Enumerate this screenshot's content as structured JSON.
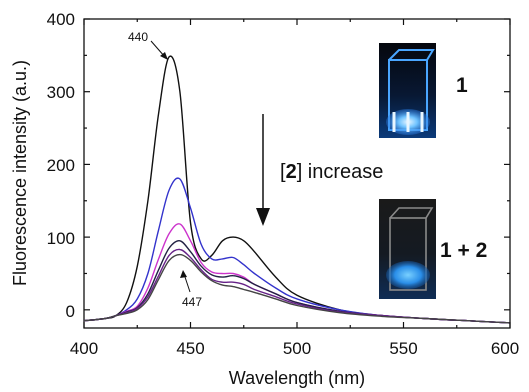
{
  "chart_data": {
    "type": "line",
    "xlabel": "Wavelength (nm)",
    "ylabel": "Fluorescence intensity (a.u.)",
    "xlim": [
      400,
      600
    ],
    "ylim": [
      -25,
      400
    ],
    "xticks": [
      "400",
      "450",
      "500",
      "550",
      "600"
    ],
    "yticks": [
      "0",
      "100",
      "200",
      "300",
      "400"
    ],
    "grid": false,
    "legend": "none",
    "series": [
      {
        "color": "#111111",
        "x": [
          400,
          410,
          415,
          420,
          425,
          430,
          435,
          440,
          445,
          450,
          455,
          460,
          465,
          470,
          475,
          480,
          490,
          500,
          520,
          540,
          560,
          580,
          600
        ],
        "y": [
          -15,
          -12,
          -8,
          10,
          60,
          150,
          270,
          348,
          300,
          120,
          70,
          75,
          95,
          100,
          95,
          80,
          45,
          20,
          0,
          -8,
          -12,
          -15,
          -18
        ]
      },
      {
        "color": "#3333cc",
        "x": [
          400,
          410,
          415,
          420,
          425,
          430,
          435,
          440,
          445,
          450,
          455,
          460,
          465,
          470,
          475,
          480,
          490,
          500,
          520,
          540,
          560,
          580,
          600
        ],
        "y": [
          -15,
          -12,
          -8,
          0,
          15,
          50,
          110,
          165,
          180,
          140,
          90,
          70,
          70,
          72,
          62,
          50,
          30,
          15,
          0,
          -8,
          -12,
          -15,
          -18
        ]
      },
      {
        "color": "#cc33cc",
        "x": [
          400,
          410,
          415,
          420,
          425,
          430,
          435,
          440,
          445,
          450,
          455,
          460,
          465,
          470,
          475,
          480,
          490,
          500,
          520,
          540,
          560,
          580,
          600
        ],
        "y": [
          -15,
          -12,
          -8,
          -2,
          5,
          30,
          70,
          105,
          118,
          95,
          65,
          52,
          50,
          50,
          45,
          35,
          22,
          10,
          -2,
          -8,
          -12,
          -15,
          -18
        ]
      },
      {
        "color": "#222244",
        "x": [
          400,
          410,
          415,
          420,
          425,
          430,
          435,
          440,
          445,
          450,
          455,
          460,
          465,
          470,
          475,
          480,
          490,
          500,
          520,
          540,
          560,
          580,
          600
        ],
        "y": [
          -15,
          -12,
          -8,
          -3,
          3,
          22,
          55,
          85,
          95,
          80,
          60,
          48,
          45,
          47,
          43,
          35,
          22,
          10,
          -2,
          -8,
          -12,
          -15,
          -18
        ]
      },
      {
        "color": "#662288",
        "x": [
          400,
          410,
          415,
          420,
          425,
          430,
          435,
          440,
          445,
          450,
          455,
          460,
          465,
          470,
          475,
          480,
          490,
          500,
          520,
          540,
          560,
          580,
          600
        ],
        "y": [
          -15,
          -12,
          -8,
          -4,
          2,
          18,
          47,
          75,
          83,
          72,
          55,
          42,
          38,
          38,
          35,
          28,
          18,
          8,
          -3,
          -8,
          -12,
          -15,
          -18
        ]
      },
      {
        "color": "#444444",
        "x": [
          400,
          410,
          415,
          420,
          425,
          430,
          435,
          440,
          445,
          450,
          455,
          460,
          465,
          470,
          475,
          480,
          490,
          500,
          520,
          540,
          560,
          580,
          600
        ],
        "y": [
          -15,
          -12,
          -8,
          -5,
          0,
          14,
          42,
          68,
          76,
          68,
          52,
          40,
          34,
          32,
          28,
          24,
          15,
          6,
          -4,
          -9,
          -12,
          -15,
          -18
        ]
      }
    ],
    "annotations": {
      "peak_top": "440",
      "peak_bottom": "447",
      "trend_prefix": "[",
      "trend_bold": "2",
      "trend_suffix": "] increase",
      "vial1_label": "1",
      "vial2_label": "1 + 2"
    }
  }
}
